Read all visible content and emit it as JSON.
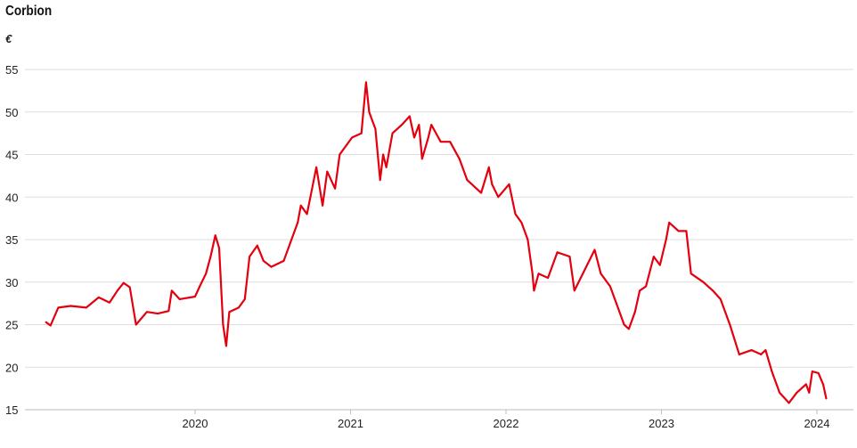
{
  "chart_data": {
    "type": "line",
    "title": "Corbion",
    "ylabel": "€",
    "xlabel": "",
    "ylim": [
      15,
      55
    ],
    "yticks": [
      15,
      20,
      25,
      30,
      35,
      40,
      45,
      50,
      55
    ],
    "xticks": [
      "2020",
      "2021",
      "2022",
      "2023",
      "2024"
    ],
    "grid": true,
    "color": "#e3000f",
    "series": [
      {
        "name": "Corbion",
        "points": [
          [
            2019.04,
            25.3
          ],
          [
            2019.07,
            24.9
          ],
          [
            2019.12,
            27.0
          ],
          [
            2019.2,
            27.2
          ],
          [
            2019.3,
            27.0
          ],
          [
            2019.38,
            28.2
          ],
          [
            2019.45,
            27.6
          ],
          [
            2019.5,
            29.0
          ],
          [
            2019.54,
            29.9
          ],
          [
            2019.58,
            29.4
          ],
          [
            2019.62,
            25.0
          ],
          [
            2019.69,
            26.5
          ],
          [
            2019.76,
            26.3
          ],
          [
            2019.83,
            26.6
          ],
          [
            2019.85,
            29.0
          ],
          [
            2019.9,
            28.0
          ],
          [
            2020.0,
            28.3
          ],
          [
            2020.03,
            29.5
          ],
          [
            2020.07,
            31.0
          ],
          [
            2020.1,
            33.0
          ],
          [
            2020.13,
            35.5
          ],
          [
            2020.155,
            34.0
          ],
          [
            2020.18,
            25.0
          ],
          [
            2020.2,
            22.5
          ],
          [
            2020.22,
            26.5
          ],
          [
            2020.28,
            27.0
          ],
          [
            2020.32,
            28.0
          ],
          [
            2020.35,
            33.0
          ],
          [
            2020.4,
            34.3
          ],
          [
            2020.44,
            32.5
          ],
          [
            2020.49,
            31.8
          ],
          [
            2020.57,
            32.5
          ],
          [
            2020.62,
            35.0
          ],
          [
            2020.66,
            37.0
          ],
          [
            2020.68,
            39.0
          ],
          [
            2020.72,
            38.0
          ],
          [
            2020.78,
            43.5
          ],
          [
            2020.82,
            39.0
          ],
          [
            2020.85,
            43.0
          ],
          [
            2020.9,
            41.0
          ],
          [
            2020.93,
            45.0
          ],
          [
            2021.01,
            47.0
          ],
          [
            2021.07,
            47.5
          ],
          [
            2021.1,
            53.5
          ],
          [
            2021.12,
            50.0
          ],
          [
            2021.16,
            48.0
          ],
          [
            2021.19,
            42.0
          ],
          [
            2021.21,
            45.0
          ],
          [
            2021.23,
            43.5
          ],
          [
            2021.27,
            47.5
          ],
          [
            2021.33,
            48.5
          ],
          [
            2021.38,
            49.5
          ],
          [
            2021.41,
            47.0
          ],
          [
            2021.44,
            48.5
          ],
          [
            2021.46,
            44.5
          ],
          [
            2021.5,
            47.0
          ],
          [
            2021.52,
            48.5
          ],
          [
            2021.58,
            46.5
          ],
          [
            2021.64,
            46.5
          ],
          [
            2021.7,
            44.5
          ],
          [
            2021.75,
            42.0
          ],
          [
            2021.81,
            41.0
          ],
          [
            2021.84,
            40.5
          ],
          [
            2021.89,
            43.5
          ],
          [
            2021.91,
            41.5
          ],
          [
            2021.95,
            40.0
          ],
          [
            2022.02,
            41.5
          ],
          [
            2022.06,
            38.0
          ],
          [
            2022.1,
            37.0
          ],
          [
            2022.14,
            35.0
          ],
          [
            2022.17,
            31.0
          ],
          [
            2022.18,
            29.0
          ],
          [
            2022.21,
            31.0
          ],
          [
            2022.27,
            30.5
          ],
          [
            2022.33,
            33.5
          ],
          [
            2022.41,
            33.0
          ],
          [
            2022.44,
            29.0
          ],
          [
            2022.57,
            33.8
          ],
          [
            2022.61,
            31.0
          ],
          [
            2022.67,
            29.5
          ],
          [
            2022.71,
            27.5
          ],
          [
            2022.76,
            25.0
          ],
          [
            2022.79,
            24.5
          ],
          [
            2022.83,
            26.5
          ],
          [
            2022.86,
            29.0
          ],
          [
            2022.9,
            29.5
          ],
          [
            2022.95,
            33.0
          ],
          [
            2022.99,
            32.0
          ],
          [
            2023.03,
            35.0
          ],
          [
            2023.05,
            37.0
          ],
          [
            2023.11,
            36.0
          ],
          [
            2023.16,
            36.0
          ],
          [
            2023.19,
            31.0
          ],
          [
            2023.27,
            30.0
          ],
          [
            2023.33,
            29.0
          ],
          [
            2023.38,
            28.0
          ],
          [
            2023.44,
            25.0
          ],
          [
            2023.5,
            21.5
          ],
          [
            2023.58,
            22.0
          ],
          [
            2023.64,
            21.5
          ],
          [
            2023.67,
            22.0
          ],
          [
            2023.71,
            19.5
          ],
          [
            2023.76,
            17.0
          ],
          [
            2023.82,
            15.8
          ],
          [
            2023.87,
            17.0
          ],
          [
            2023.93,
            18.0
          ],
          [
            2023.95,
            17.0
          ],
          [
            2023.97,
            19.5
          ],
          [
            2024.01,
            19.3
          ],
          [
            2024.04,
            18.0
          ],
          [
            2024.06,
            16.3
          ]
        ]
      }
    ]
  }
}
